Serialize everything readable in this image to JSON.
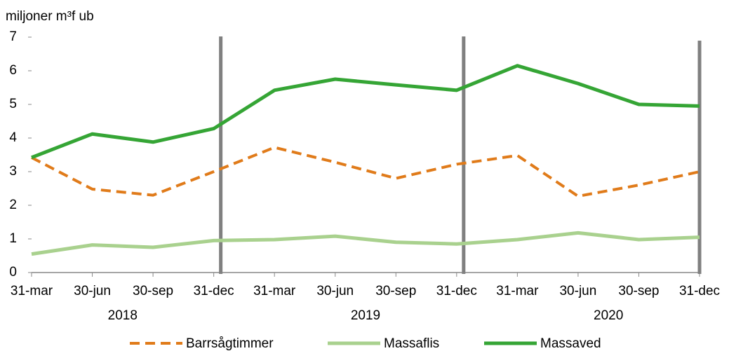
{
  "chart_data": {
    "type": "line",
    "y_label": "miljoner m³f ub",
    "categories": [
      "31-mar",
      "30-jun",
      "30-sep",
      "31-dec",
      "31-mar",
      "30-jun",
      "30-sep",
      "31-dec",
      "31-mar",
      "30-jun",
      "30-sep",
      "31-dec"
    ],
    "years": [
      "2018",
      "2019",
      "2020"
    ],
    "series": [
      {
        "name": "Barrsågtimmer",
        "color": "#e07b1a",
        "dashed": true,
        "values": [
          3.42,
          2.48,
          2.3,
          3.0,
          3.72,
          3.28,
          2.8,
          3.22,
          3.48,
          2.27,
          2.6,
          3.0
        ]
      },
      {
        "name": "Massaflis",
        "color": "#a9d18e",
        "dashed": false,
        "values": [
          0.55,
          0.82,
          0.75,
          0.95,
          0.98,
          1.08,
          0.9,
          0.85,
          0.98,
          1.18,
          0.98,
          1.05
        ]
      },
      {
        "name": "Massaved",
        "color": "#35a535",
        "dashed": false,
        "values": [
          3.42,
          4.12,
          3.88,
          4.28,
          5.42,
          5.75,
          5.58,
          5.42,
          6.15,
          5.62,
          5.0,
          4.95
        ]
      }
    ],
    "ylim": [
      0,
      7
    ],
    "yticks": [
      0,
      1,
      2,
      3,
      4,
      5,
      6,
      7
    ],
    "grid": false,
    "legend": "bottom"
  }
}
